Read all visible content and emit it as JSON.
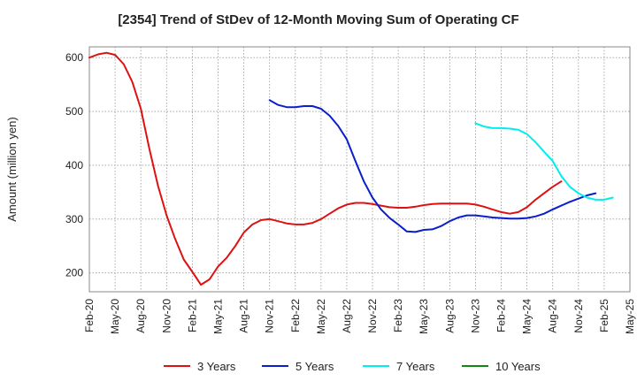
{
  "chart_data": {
    "type": "line",
    "title": "[2354]  Trend of StDev of 12-Month Moving Sum of Operating CF",
    "xlabel": "",
    "ylabel": "Amount (million yen)",
    "ylim": [
      165,
      620
    ],
    "yticks": [
      200,
      300,
      400,
      500,
      600
    ],
    "grid": true,
    "legend_position": "bottom",
    "x_tick_labels": [
      "Feb-20",
      "May-20",
      "Aug-20",
      "Nov-20",
      "Feb-21",
      "May-21",
      "Aug-21",
      "Nov-21",
      "Feb-22",
      "May-22",
      "Aug-22",
      "Nov-22",
      "Feb-23",
      "May-23",
      "Aug-23",
      "Nov-23",
      "Feb-24",
      "May-24",
      "Aug-24",
      "Nov-24",
      "Feb-25",
      "May-25"
    ],
    "x_start": "Feb-20",
    "series": [
      {
        "name": "3 Years",
        "color": "#dd1111",
        "start_index": 0,
        "values": [
          600,
          606,
          609,
          605,
          588,
          555,
          505,
          430,
          362,
          307,
          263,
          225,
          202,
          178,
          188,
          212,
          228,
          250,
          275,
          290,
          298,
          300,
          296,
          292,
          290,
          290,
          293,
          300,
          310,
          320,
          327,
          330,
          330,
          328,
          325,
          322,
          321,
          321,
          323,
          326,
          328,
          329,
          329,
          329,
          329,
          327,
          323,
          318,
          313,
          310,
          313,
          322,
          336,
          348,
          360,
          370
        ]
      },
      {
        "name": "5 Years",
        "color": "#0a1ecc",
        "start_index": 21,
        "values": [
          521,
          512,
          508,
          508,
          510,
          510,
          505,
          492,
          473,
          448,
          408,
          370,
          340,
          318,
          302,
          290,
          277,
          276,
          280,
          281,
          287,
          296,
          303,
          307,
          307,
          305,
          303,
          302,
          301,
          301,
          302,
          305,
          310,
          318,
          325,
          332,
          338,
          344,
          348
        ]
      },
      {
        "name": "7 Years",
        "color": "#00eeee",
        "start_index": 45,
        "values": [
          478,
          472,
          469,
          469,
          468,
          466,
          458,
          443,
          425,
          408,
          380,
          360,
          348,
          340,
          336,
          336,
          340
        ]
      },
      {
        "name": "10 Years",
        "color": "#118811",
        "start_index": 0,
        "values": []
      }
    ]
  }
}
